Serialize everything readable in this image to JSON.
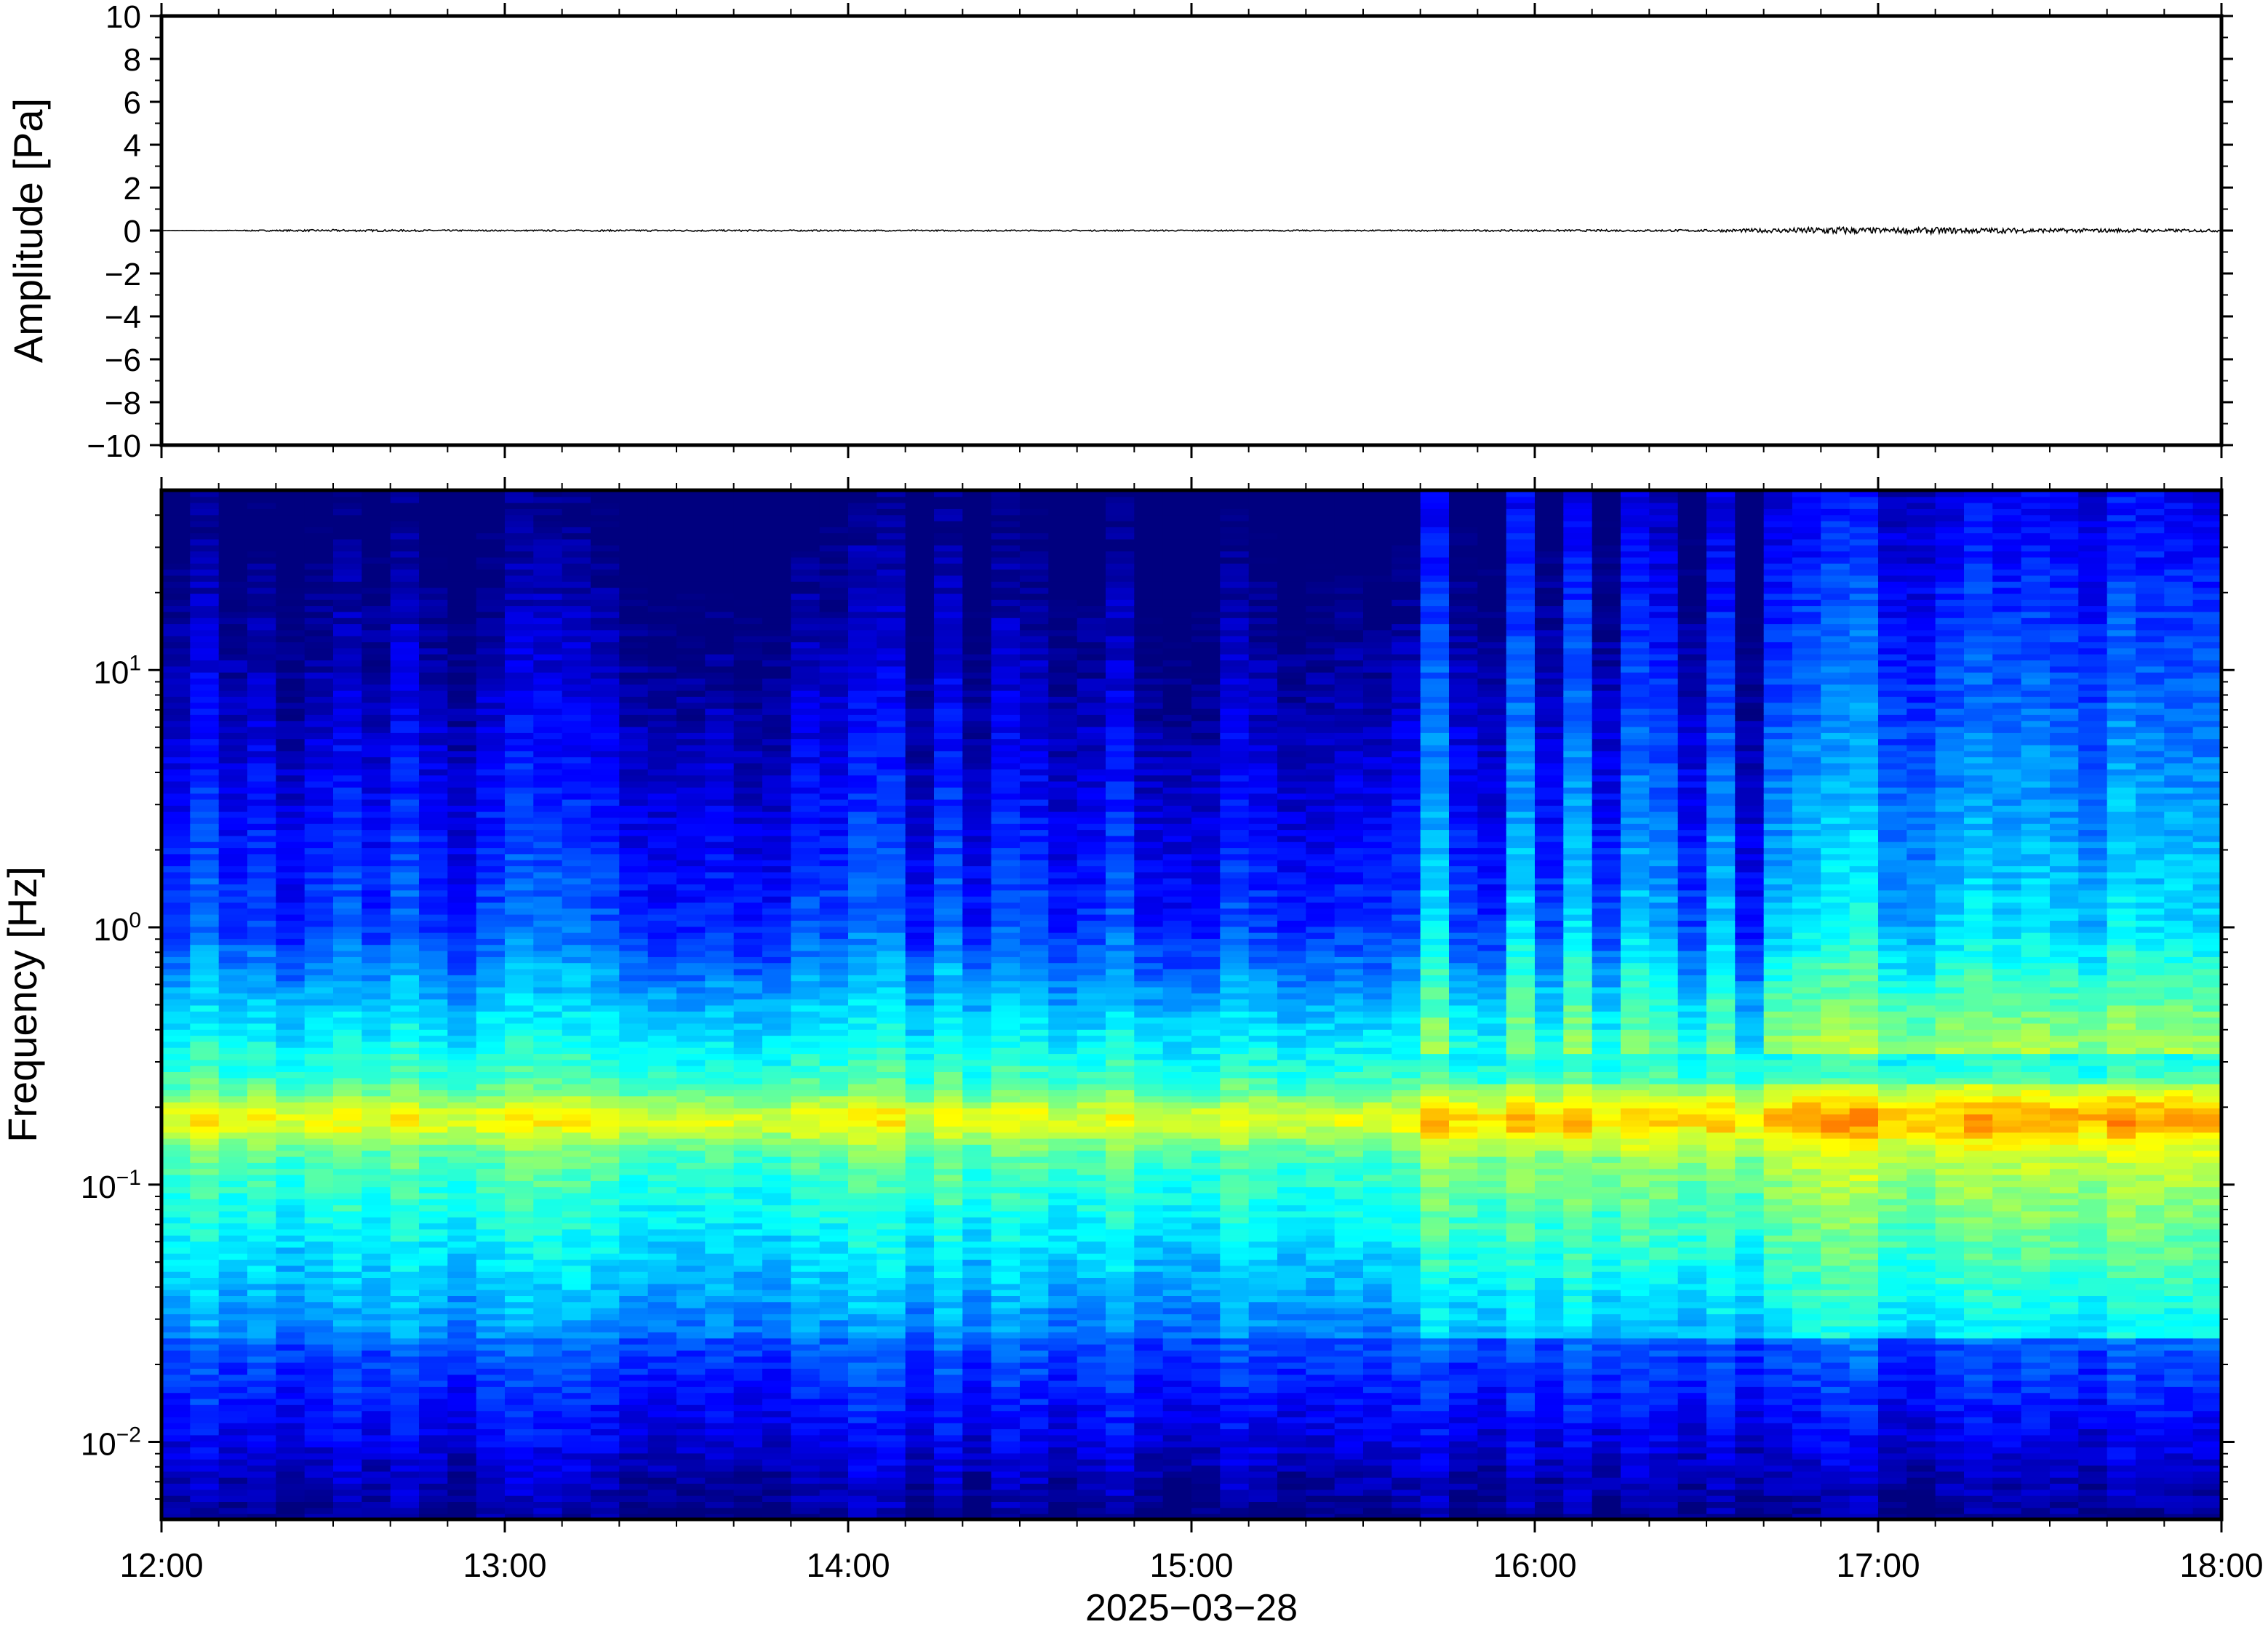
{
  "chart_data": [
    {
      "type": "line",
      "panel": "waveform",
      "ylabel": "Amplitude [Pa]",
      "ylim": [
        -10,
        10
      ],
      "yticks": [
        10,
        8,
        6,
        4,
        2,
        0,
        -2,
        -4,
        -6,
        -8,
        -10
      ],
      "ytick_labels": [
        "10",
        "8",
        "6",
        "4",
        "2",
        "0",
        "−2",
        "−4",
        "−6",
        "−8",
        "−10"
      ],
      "xlim": [
        "12:00",
        "18:00"
      ],
      "series": [
        {
          "x": [
            "12:00",
            "12:30",
            "13:00",
            "13:30",
            "14:00",
            "14:30",
            "15:00",
            "15:30",
            "16:00",
            "16:30",
            "16:45",
            "16:52",
            "17:00",
            "17:10",
            "17:30",
            "18:00"
          ],
          "y": [
            0.0,
            0.05,
            0.03,
            0.04,
            0.03,
            0.03,
            0.03,
            0.03,
            0.04,
            0.05,
            0.12,
            0.2,
            0.12,
            0.15,
            0.1,
            0.06
          ]
        }
      ],
      "color": "#000000"
    },
    {
      "type": "heatmap",
      "panel": "spectrogram",
      "ylabel": "Frequency [Hz]",
      "xlabel": "2025−03−28",
      "yscale": "log",
      "ylim": [
        0.005,
        50
      ],
      "yticks": [
        0.01,
        0.1,
        1,
        10
      ],
      "ytick_labels": [
        {
          "base": "10",
          "exp": "−2"
        },
        {
          "base": "10",
          "exp": "−1"
        },
        {
          "base": "10",
          "exp": "0"
        },
        {
          "base": "10",
          "exp": "1"
        }
      ],
      "x": [
        "12:00",
        "13:00",
        "14:00",
        "15:00",
        "16:00",
        "17:00",
        "18:00"
      ],
      "xtick_labels": [
        "12:00",
        "13:00",
        "14:00",
        "15:00",
        "16:00",
        "17:00",
        "18:00"
      ],
      "colormap": "jet",
      "colors": [
        "#00007f",
        "#0000ff",
        "#007fff",
        "#00ffff",
        "#7fff7f",
        "#ffff00",
        "#ff7f00",
        "#ff0000"
      ],
      "band_peak_hz": 0.18
    }
  ]
}
